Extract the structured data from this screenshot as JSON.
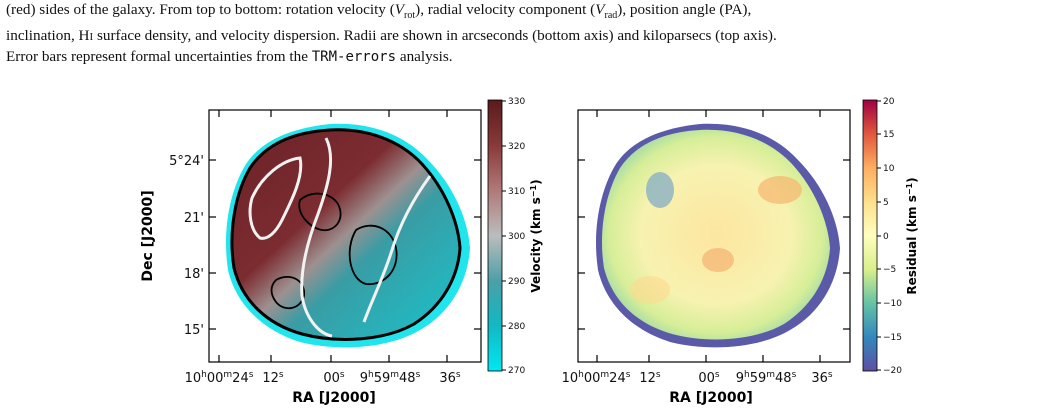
{
  "caption": {
    "line1_start": "(red) sides of the galaxy. From top to bottom: rotation velocity (",
    "vrot_V": "V",
    "vrot_sub": "rot",
    "line1_mid": "), radial velocity component (",
    "vrad_V": "V",
    "vrad_sub": "rad",
    "line1_end": "), position angle (PA),",
    "line2_start": "inclination, H",
    "hi_numeral": "I",
    "line2_end": " surface density, and velocity dispersion. Radii are shown in arcseconds (bottom axis) and kiloparsecs (top axis).",
    "line3_start": "Error bars represent formal uncertainties from the ",
    "trm": "TRM-errors",
    "line3_end": " analysis."
  },
  "left_panel": {
    "ylabel": "Dec [J2000]",
    "xlabel": "RA [J2000]",
    "yticks": [
      "5°24'",
      "21'",
      "18'",
      "15'"
    ],
    "xticks": [
      {
        "h": "10",
        "m": "00",
        "s": "24",
        "hl": "h",
        "ml": "m",
        "sl": "s"
      },
      {
        "s": "12",
        "sl": "s"
      },
      {
        "s": "00",
        "sl": "s"
      },
      {
        "h": "9",
        "m": "59",
        "s": "48",
        "hl": "h",
        "ml": "m",
        "sl": "s"
      },
      {
        "s": "36",
        "sl": "s"
      }
    ],
    "colorbar": {
      "label": "Velocity (km s",
      "label_sup": "−1",
      "label_close": ")",
      "ticks": [
        "330",
        "320",
        "310",
        "300",
        "290",
        "280",
        "270"
      ],
      "colors": [
        "#5a1a1c",
        "#8a3a3a",
        "#b07878",
        "#bcbcbc",
        "#4aa0a8",
        "#11b8c4",
        "#00e8f0"
      ]
    }
  },
  "right_panel": {
    "xlabel": "RA [J2000]",
    "xticks": [
      {
        "h": "10",
        "m": "00",
        "s": "24",
        "hl": "h",
        "ml": "m",
        "sl": "s"
      },
      {
        "s": "12",
        "sl": "s"
      },
      {
        "s": "00",
        "sl": "s"
      },
      {
        "h": "9",
        "m": "59",
        "s": "48",
        "hl": "h",
        "ml": "m",
        "sl": "s"
      },
      {
        "s": "36",
        "sl": "s"
      }
    ],
    "colorbar": {
      "label": "Residual (km s",
      "label_sup": "−1",
      "label_close": ")",
      "ticks": [
        "20",
        "15",
        "10",
        "5",
        "0",
        "−5",
        "−10",
        "−15",
        "−20"
      ],
      "colors": [
        "#9e0142",
        "#e0573e",
        "#fdae61",
        "#fee08b",
        "#ffffbf",
        "#d9ef8b",
        "#66c2a5",
        "#3288bd",
        "#5e4fa2"
      ]
    }
  }
}
